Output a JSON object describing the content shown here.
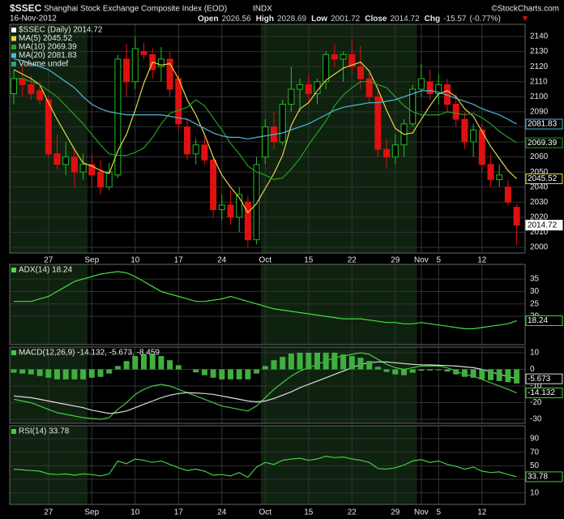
{
  "header": {
    "symbol": "$SSEC",
    "name": "Shanghai Stock Exchange Composite Index (EOD)",
    "exchange": "INDX",
    "source": "©StockCharts.com",
    "date": "16-Nov-2012",
    "stats": [
      {
        "label": "Open",
        "value": 2026.56
      },
      {
        "label": "High",
        "value": 2028.69
      },
      {
        "label": "Low",
        "value": 2001.72
      },
      {
        "label": "Close",
        "value": 2014.72
      },
      {
        "label": "Chg",
        "value": -15.57
      }
    ],
    "change_pct": "(-0.77%)"
  },
  "chart_data": [
    {
      "type": "candlestick",
      "name": "$SSEC (Daily) 2014.72",
      "volume_label": "Volume undef",
      "up_color": "#22c022",
      "down_color": "#e01010",
      "categories": [
        null,
        null,
        null,
        null,
        "27",
        null,
        null,
        null,
        null,
        "Sep",
        null,
        null,
        null,
        null,
        "10",
        null,
        null,
        null,
        null,
        "17",
        null,
        null,
        null,
        null,
        "24",
        null,
        null,
        null,
        null,
        "Oct",
        null,
        null,
        null,
        null,
        "15",
        null,
        null,
        null,
        null,
        "22",
        null,
        null,
        null,
        null,
        "29",
        null,
        null,
        "Nov",
        null,
        "5",
        null,
        null,
        null,
        null,
        "12",
        null,
        null,
        null,
        null
      ],
      "open": [
        2102,
        2112,
        2108,
        2104,
        2098,
        2062,
        2055,
        2060,
        2050,
        2055,
        2050,
        2040,
        2048,
        2125,
        2110,
        2130,
        2128,
        2120,
        2125,
        2112,
        2080,
        2062,
        2068,
        2058,
        2025,
        2028,
        2020,
        2030,
        2005,
        2060,
        2080,
        2070,
        2095,
        2105,
        2108,
        2102,
        2110,
        2128,
        2125,
        2128,
        2120,
        2112,
        2100,
        2065,
        2060,
        2068,
        2082,
        2105,
        2110,
        2102,
        2108,
        2095,
        2085,
        2070,
        2078,
        2055,
        2045,
        2040,
        2026.56
      ],
      "high": [
        2118,
        2120,
        2114,
        2110,
        2100,
        2075,
        2070,
        2066,
        2062,
        2062,
        2058,
        2056,
        2128,
        2135,
        2140,
        2136,
        2132,
        2133,
        2130,
        2114,
        2086,
        2072,
        2074,
        2060,
        2035,
        2038,
        2040,
        2034,
        2060,
        2085,
        2090,
        2098,
        2120,
        2112,
        2115,
        2112,
        2130,
        2135,
        2130,
        2138,
        2134,
        2118,
        2105,
        2072,
        2075,
        2085,
        2108,
        2122,
        2118,
        2115,
        2112,
        2102,
        2090,
        2082,
        2082,
        2062,
        2055,
        2045,
        2028.69
      ],
      "low": [
        2095,
        2100,
        2098,
        2095,
        2060,
        2052,
        2048,
        2040,
        2045,
        2040,
        2035,
        2038,
        2046,
        2100,
        2105,
        2125,
        2112,
        2110,
        2100,
        2078,
        2058,
        2055,
        2055,
        2020,
        2018,
        2015,
        2010,
        2000,
        2002,
        2055,
        2065,
        2068,
        2090,
        2090,
        2095,
        2095,
        2105,
        2120,
        2110,
        2115,
        2105,
        2095,
        2060,
        2052,
        2055,
        2060,
        2080,
        2100,
        2098,
        2095,
        2090,
        2080,
        2065,
        2060,
        2050,
        2040,
        2040,
        2028,
        2001.72
      ],
      "close": [
        2112,
        2108,
        2102,
        2098,
        2062,
        2055,
        2060,
        2050,
        2055,
        2048,
        2040,
        2050,
        2125,
        2110,
        2132,
        2128,
        2118,
        2125,
        2105,
        2082,
        2062,
        2068,
        2058,
        2025,
        2028,
        2020,
        2035,
        2005,
        2055,
        2080,
        2070,
        2095,
        2105,
        2108,
        2102,
        2110,
        2128,
        2125,
        2128,
        2120,
        2112,
        2100,
        2065,
        2060,
        2068,
        2082,
        2105,
        2112,
        2102,
        2108,
        2095,
        2085,
        2070,
        2078,
        2055,
        2045,
        2048,
        2030,
        2014.72
      ],
      "series": [
        {
          "name": "MA(5) 2045.52",
          "color": "#e8d44d",
          "values": [
            2118,
            2115,
            2112,
            2108,
            2096,
            2085,
            2075,
            2065,
            2056,
            2054,
            2051,
            2049,
            2064,
            2075,
            2091,
            2109,
            2123,
            2121,
            2122,
            2112,
            2098,
            2088,
            2075,
            2060,
            2048,
            2040,
            2033,
            2023,
            2029,
            2039,
            2049,
            2061,
            2081,
            2092,
            2096,
            2104,
            2111,
            2115,
            2119,
            2121,
            2123,
            2117,
            2105,
            2091,
            2079,
            2075,
            2076,
            2085,
            2094,
            2102,
            2104,
            2100,
            2092,
            2087,
            2077,
            2067,
            2059,
            2051,
            2045.52
          ]
        },
        {
          "name": "MA(10) 2069.39",
          "color": "#25a025",
          "values": [
            2112,
            2112,
            2110,
            2108,
            2104,
            2100,
            2094,
            2088,
            2082,
            2075,
            2068,
            2062,
            2061,
            2061,
            2063,
            2066,
            2073,
            2082,
            2089,
            2091,
            2093,
            2098,
            2094,
            2086,
            2078,
            2069,
            2062,
            2054,
            2050,
            2048,
            2045,
            2046,
            2052,
            2059,
            2068,
            2076,
            2084,
            2094,
            2101,
            2106,
            2110,
            2110,
            2108,
            2106,
            2100,
            2094,
            2090,
            2088,
            2088,
            2088,
            2090,
            2089,
            2088,
            2089,
            2086,
            2082,
            2077,
            2073,
            2069.39
          ]
        },
        {
          "name": "MA(20) 2081.83",
          "color": "#4fb8d8",
          "values": [
            2125,
            2124,
            2122,
            2120,
            2118,
            2114,
            2110,
            2106,
            2100,
            2095,
            2092,
            2090,
            2089,
            2088,
            2088,
            2088,
            2088,
            2088,
            2087,
            2086,
            2085,
            2082,
            2079,
            2076,
            2074,
            2073,
            2073,
            2072,
            2073,
            2074,
            2075,
            2076,
            2078,
            2080,
            2082,
            2085,
            2088,
            2091,
            2093,
            2094,
            2095,
            2096,
            2096,
            2097,
            2098,
            2100,
            2102,
            2104,
            2104,
            2103,
            2101,
            2099,
            2097,
            2095,
            2092,
            2090,
            2088,
            2085,
            2081.83
          ]
        }
      ],
      "ylim": [
        1996.2,
        2148.1
      ],
      "yticks": [
        2000,
        2010,
        2020,
        2030,
        2040,
        2050,
        2060,
        2070,
        2080,
        2090,
        2100,
        2110,
        2120,
        2130,
        2140
      ],
      "grid": true
    },
    {
      "type": "line",
      "series": [
        {
          "name": "ADX(14) 18.24",
          "color": "#44dd44",
          "values": [
            26,
            26,
            26,
            27,
            28,
            30,
            32,
            34,
            35,
            36,
            37,
            37.5,
            38,
            37.5,
            36,
            34,
            32,
            30,
            29,
            28,
            27,
            26,
            26,
            26.5,
            27,
            28,
            27,
            26,
            25,
            24,
            23,
            22.5,
            22,
            21.5,
            21,
            20.5,
            20,
            19.5,
            19,
            19,
            19,
            18.5,
            18,
            17.5,
            17.5,
            17,
            17,
            17.5,
            17,
            16.5,
            16,
            15.5,
            15,
            15,
            15.5,
            16,
            16.5,
            17,
            18.24
          ]
        }
      ],
      "ylim": [
        8.6,
        40.9
      ],
      "yticks": [
        20,
        25,
        30,
        35
      ],
      "grid": true
    },
    {
      "type": "line",
      "name": "MACD(12,26,9) -14.132, -5.673, -8.459",
      "series": [
        {
          "color": "#44cc44",
          "values": [
            -18,
            -19,
            -20,
            -22,
            -24,
            -26,
            -27,
            -28,
            -29,
            -29.5,
            -30,
            -29,
            -24,
            -20,
            -15,
            -12,
            -10,
            -9,
            -10,
            -12,
            -14,
            -16,
            -18,
            -20,
            -22,
            -23,
            -24,
            -25,
            -22,
            -17,
            -12,
            -8,
            -4,
            -1,
            1,
            3,
            5,
            7,
            8,
            9,
            10,
            9,
            6,
            3,
            1,
            0,
            1,
            2,
            2,
            2,
            1,
            -1,
            -3,
            -4,
            -6,
            -8,
            -10,
            -12,
            -14.132
          ]
        },
        {
          "color": "#dddddd",
          "values": [
            -16,
            -16.5,
            -17,
            -18,
            -19,
            -20,
            -21,
            -22,
            -23,
            -24.5,
            -25.5,
            -26.5,
            -26,
            -25,
            -23,
            -21,
            -19,
            -17,
            -15.5,
            -14.5,
            -14,
            -14.2,
            -14.5,
            -15,
            -16,
            -17,
            -18,
            -19,
            -19.5,
            -19,
            -17.5,
            -15.5,
            -13.5,
            -11,
            -9,
            -7,
            -5,
            -3,
            -1,
            1,
            3,
            4,
            4.5,
            4.5,
            4,
            3.5,
            3,
            2.8,
            2.7,
            2.5,
            2.3,
            2,
            1.5,
            1,
            0,
            -1.5,
            -3,
            -4.3,
            -5.673
          ]
        },
        {
          "color": "#3fb03f",
          "style": "bar",
          "values": [
            -2,
            -2.5,
            -3,
            -4,
            -5,
            -6,
            -6,
            -6,
            -6,
            -5,
            -4.5,
            -2.5,
            2,
            5,
            8,
            9,
            9,
            8,
            5.5,
            2.5,
            0,
            -1.8,
            -3.5,
            -5,
            -6,
            -6,
            -6,
            -6,
            -2.5,
            2,
            5.5,
            7.5,
            9.5,
            10,
            10,
            10,
            10,
            10,
            9,
            8,
            7,
            5,
            1.5,
            -1.5,
            -3,
            -3.5,
            -2,
            -0.8,
            -0.7,
            -0.5,
            -1.3,
            -3,
            -4.5,
            -5,
            -6,
            -6.5,
            -7,
            -7.7,
            -8.459
          ]
        }
      ],
      "ylim": [
        -32.4,
        13.4
      ],
      "yticks": [
        -30,
        -20,
        -10,
        0,
        10
      ],
      "grid": true
    },
    {
      "type": "line",
      "categories": [
        null,
        null,
        null,
        null,
        "27",
        null,
        null,
        null,
        null,
        "Sep",
        null,
        null,
        null,
        null,
        "10",
        null,
        null,
        null,
        null,
        "17",
        null,
        null,
        null,
        null,
        "24",
        null,
        null,
        null,
        null,
        "Oct",
        null,
        null,
        null,
        null,
        "15",
        null,
        null,
        null,
        null,
        "22",
        null,
        null,
        null,
        null,
        "29",
        null,
        null,
        "Nov",
        null,
        "5",
        null,
        null,
        null,
        null,
        "12",
        null,
        null,
        null,
        null
      ],
      "series": [
        {
          "name": "RSI(14) 33.78",
          "color": "#44cc44",
          "values": [
            45,
            44,
            43,
            42,
            38,
            37,
            38,
            36,
            38,
            37,
            35,
            38,
            57,
            53,
            60,
            58,
            55,
            57,
            52,
            47,
            43,
            45,
            42,
            36,
            37,
            35,
            40,
            33,
            48,
            55,
            52,
            58,
            60,
            61,
            58,
            60,
            64,
            62,
            63,
            60,
            58,
            55,
            46,
            45,
            47,
            51,
            57,
            59,
            55,
            57,
            52,
            49,
            45,
            48,
            42,
            40,
            41,
            37,
            33.78
          ]
        }
      ],
      "ylim": [
        -7,
        109
      ],
      "yticks": [
        10,
        30,
        50,
        70,
        90
      ],
      "grid": true
    }
  ]
}
